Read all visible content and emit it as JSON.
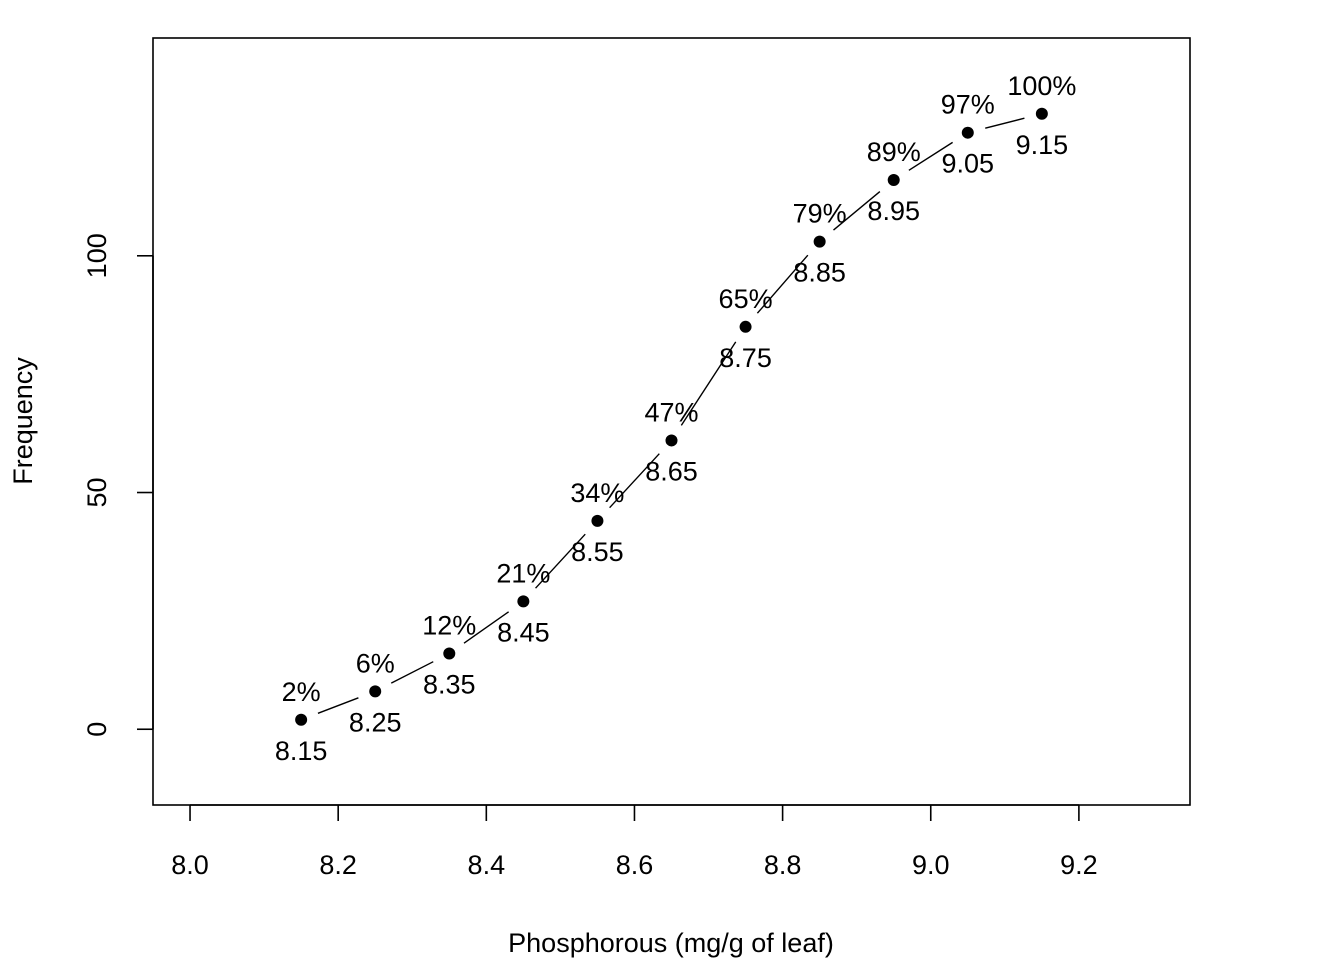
{
  "chart_data": {
    "type": "line",
    "title": "",
    "xlabel": "Phosphorous (mg/g of leaf)",
    "ylabel": "Frequency",
    "xlim": [
      7.95,
      9.35
    ],
    "ylim": [
      -16,
      146
    ],
    "x_ticks": [
      8.0,
      8.2,
      8.4,
      8.6,
      8.8,
      9.0,
      9.2
    ],
    "x_tick_labels": [
      "8.0",
      "8.2",
      "8.4",
      "8.6",
      "8.8",
      "9.0",
      "9.2"
    ],
    "y_ticks": [
      0,
      50,
      100
    ],
    "y_tick_labels": [
      "0",
      "50",
      "100"
    ],
    "grid": false,
    "legend": "none",
    "marker": "filled-circle",
    "line_style": "segments-with-gaps",
    "color": "#000000",
    "points": [
      {
        "x": 8.15,
        "y": 2,
        "label_above": "2%",
        "label_below": "8.15"
      },
      {
        "x": 8.25,
        "y": 8,
        "label_above": "6%",
        "label_below": "8.25"
      },
      {
        "x": 8.35,
        "y": 16,
        "label_above": "12%",
        "label_below": "8.35"
      },
      {
        "x": 8.45,
        "y": 27,
        "label_above": "21%",
        "label_below": "8.45"
      },
      {
        "x": 8.55,
        "y": 44,
        "label_above": "34%",
        "label_below": "8.55"
      },
      {
        "x": 8.65,
        "y": 61,
        "label_above": "47%",
        "label_below": "8.65"
      },
      {
        "x": 8.75,
        "y": 85,
        "label_above": "65%",
        "label_below": "8.75"
      },
      {
        "x": 8.85,
        "y": 103,
        "label_above": "79%",
        "label_below": "8.85"
      },
      {
        "x": 8.95,
        "y": 116,
        "label_above": "89%",
        "label_below": "8.95"
      },
      {
        "x": 9.05,
        "y": 126,
        "label_above": "97%",
        "label_below": "9.05"
      },
      {
        "x": 9.15,
        "y": 130,
        "label_above": "100%",
        "label_below": "9.15"
      }
    ]
  }
}
